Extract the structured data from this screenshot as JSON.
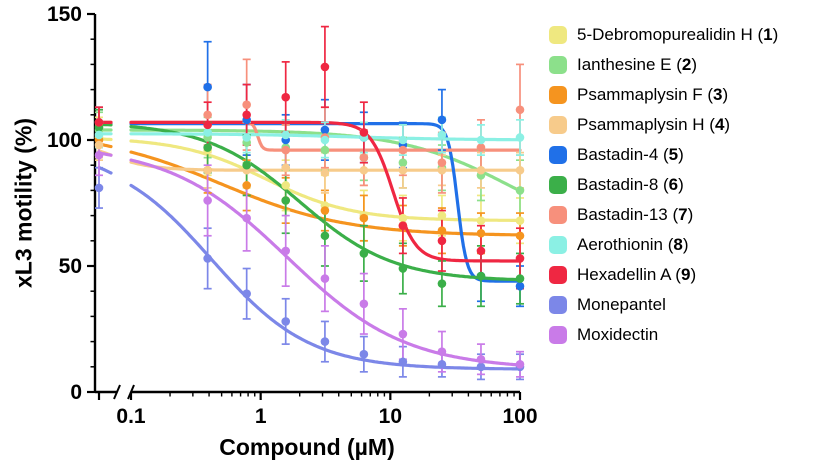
{
  "chart_data": {
    "type": "scatter",
    "title": "",
    "xlabel": "Compound (µM)",
    "ylabel": "xL3 motility (%)",
    "x_scale": "log",
    "x_break": {
      "left_edge_value": 0.05,
      "resume_value": 0.1
    },
    "xlim": [
      0.05,
      100
    ],
    "ylim": [
      0,
      150
    ],
    "y_major_ticks": [
      0,
      50,
      100,
      150
    ],
    "y_minor_step": 10,
    "x_major_ticks": [
      0.1,
      1,
      10,
      100
    ],
    "legend_position": "right",
    "grid": false,
    "x": [
      0.05,
      0.39,
      0.78,
      1.56,
      3.13,
      6.25,
      12.5,
      25,
      50,
      100
    ],
    "series": [
      {
        "name": "5-Debromopurealidin H",
        "number": "1",
        "color": "#EFE880",
        "values": [
          101,
          96,
          90,
          82,
          74,
          70,
          69,
          70,
          68,
          68
        ],
        "errors": [
          8,
          10,
          9,
          10,
          12,
          10,
          9,
          8,
          10,
          9
        ],
        "fit": {
          "top": 101,
          "bottom": 68,
          "ec50": 1.1,
          "hill": 1.3
        }
      },
      {
        "name": "Ianthesine E",
        "number": "2",
        "color": "#8CE08B",
        "values": [
          104,
          101,
          99,
          97,
          96,
          93,
          91,
          89,
          86,
          80
        ],
        "errors": [
          7,
          8,
          8,
          9,
          8,
          9,
          10,
          9,
          10,
          12
        ],
        "fit": {
          "top": 104,
          "bottom": 58,
          "ec50": 90,
          "hill": 1.0
        }
      },
      {
        "name": "Psammaplysin F",
        "number": "3",
        "color": "#F5941F",
        "values": [
          100,
          88,
          82,
          76,
          72,
          69,
          66,
          64,
          63,
          62
        ],
        "errors": [
          6,
          9,
          10,
          9,
          8,
          9,
          8,
          9,
          8,
          9
        ],
        "fit": {
          "top": 103,
          "bottom": 62,
          "ec50": 0.5,
          "hill": 0.9
        }
      },
      {
        "name": "Psammaplysin H",
        "number": "4",
        "color": "#F7CB8B",
        "values": [
          98,
          88,
          88,
          89,
          87,
          88,
          88,
          88,
          88,
          88
        ],
        "errors": [
          6,
          7,
          6,
          7,
          8,
          6,
          7,
          6,
          7,
          7
        ],
        "fit": {
          "top": 99,
          "bottom": 88,
          "ec50": 0.07,
          "hill": 2.5
        }
      },
      {
        "name": "Bastadin-4",
        "number": "5",
        "color": "#2070E8",
        "values": [
          107,
          121,
          108,
          100,
          104,
          101,
          98,
          108,
          46,
          42
        ],
        "errors": [
          6,
          18,
          14,
          10,
          12,
          10,
          9,
          12,
          10,
          8
        ],
        "fit": {
          "top": 106.5,
          "bottom": 44,
          "ec50": 33,
          "hill": 12
        }
      },
      {
        "name": "Bastadin-8",
        "number": "6",
        "color": "#3BAF49",
        "values": [
          105,
          97,
          90,
          76,
          62,
          55,
          49,
          43,
          46,
          45
        ],
        "errors": [
          7,
          10,
          12,
          13,
          12,
          11,
          10,
          9,
          12,
          10
        ],
        "fit": {
          "top": 107,
          "bottom": 44,
          "ec50": 2.0,
          "hill": 1.2
        }
      },
      {
        "name": "Bastadin-13",
        "number": "7",
        "color": "#F7907C",
        "values": [
          107,
          110,
          114,
          96,
          101,
          93,
          96,
          91,
          97,
          112
        ],
        "errors": [
          6,
          12,
          18,
          10,
          12,
          11,
          10,
          12,
          11,
          18
        ],
        "fit": {
          "top": 107,
          "bottom": 96,
          "ec50": 0.95,
          "hill": 25
        }
      },
      {
        "name": "Aerothionin",
        "number": "8",
        "color": "#8BF0E4",
        "values": [
          102,
          103,
          101,
          102,
          100,
          101,
          100,
          102,
          100,
          101
        ],
        "errors": [
          5,
          7,
          6,
          6,
          7,
          6,
          6,
          7,
          6,
          7
        ],
        "fit": {
          "top": 102.5,
          "bottom": 100,
          "ec50": 5,
          "hill": 1.0
        }
      },
      {
        "name": "Hexadellin A",
        "number": "9",
        "color": "#EF2742",
        "values": [
          107,
          106,
          110,
          117,
          129,
          103,
          66,
          60,
          56,
          53
        ],
        "errors": [
          6,
          9,
          12,
          14,
          16,
          12,
          11,
          12,
          10,
          12
        ],
        "fit": {
          "top": 107,
          "bottom": 52,
          "ec50": 10.5,
          "hill": 5
        }
      },
      {
        "name": "Monepantel",
        "number": "",
        "color": "#7C87E8",
        "values": [
          81,
          53,
          39,
          28,
          20,
          15,
          12,
          11,
          10,
          10
        ],
        "errors": [
          8,
          12,
          10,
          9,
          8,
          7,
          6,
          5,
          5,
          5
        ],
        "fit": {
          "top": 96,
          "bottom": 9,
          "ec50": 0.42,
          "hill": 1.15
        }
      },
      {
        "name": "Moxidectin",
        "number": "",
        "color": "#C97BE8",
        "values": [
          94,
          76,
          69,
          56,
          45,
          35,
          23,
          16,
          13,
          11
        ],
        "errors": [
          8,
          14,
          13,
          14,
          13,
          12,
          10,
          8,
          6,
          5
        ],
        "fit": {
          "top": 98,
          "bottom": 9,
          "ec50": 1.6,
          "hill": 0.95
        }
      }
    ]
  }
}
